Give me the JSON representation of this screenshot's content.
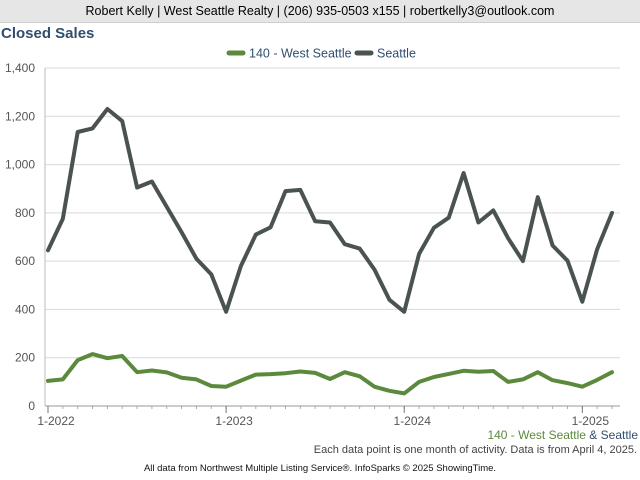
{
  "header": {
    "contact": "Robert Kelly | West Seattle Realty | (206) 935-0503 x155 | robertkelly3@outlook.com"
  },
  "chart_data": {
    "type": "line",
    "title": "Closed Sales",
    "x": [
      "2022-01",
      "2022-02",
      "2022-03",
      "2022-04",
      "2022-05",
      "2022-06",
      "2022-07",
      "2022-08",
      "2022-09",
      "2022-10",
      "2022-11",
      "2022-12",
      "2023-01",
      "2023-02",
      "2023-03",
      "2023-04",
      "2023-05",
      "2023-06",
      "2023-07",
      "2023-08",
      "2023-09",
      "2023-10",
      "2023-11",
      "2023-12",
      "2024-01",
      "2024-02",
      "2024-03",
      "2024-04",
      "2024-05",
      "2024-06",
      "2024-07",
      "2024-08",
      "2024-09",
      "2024-10",
      "2024-11",
      "2024-12",
      "2025-01",
      "2025-02",
      "2025-03"
    ],
    "x_ticks": [
      "1-2022",
      "1-2023",
      "1-2024",
      "1-2025"
    ],
    "y_ticks": [
      "0",
      "200",
      "400",
      "600",
      "800",
      "1,000",
      "1,200",
      "1,400"
    ],
    "ylim": [
      0,
      1400
    ],
    "grid": true,
    "legend_position": "top-center",
    "series": [
      {
        "name": "140 - West Seattle",
        "color": "#5b8a3c",
        "values": [
          104,
          110,
          190,
          215,
          198,
          207,
          140,
          147,
          139,
          117,
          110,
          83,
          80,
          105,
          130,
          132,
          136,
          143,
          137,
          112,
          140,
          123,
          80,
          63,
          52,
          100,
          120,
          133,
          146,
          142,
          145,
          100,
          110,
          140,
          107,
          95,
          80,
          108,
          140
        ]
      },
      {
        "name": "Seattle",
        "color": "#4a5352",
        "values": [
          645,
          775,
          1135,
          1150,
          1230,
          1180,
          905,
          930,
          825,
          720,
          610,
          545,
          390,
          580,
          710,
          740,
          890,
          895,
          765,
          760,
          670,
          652,
          565,
          440,
          390,
          630,
          738,
          780,
          965,
          760,
          810,
          695,
          600,
          865,
          665,
          602,
          432,
          650,
          800
        ]
      }
    ],
    "bottom_legend": {
      "series1": "140 - West Seattle",
      "amp": "&",
      "series2": "Seattle"
    }
  },
  "footer": {
    "note": "Each data point is one month of activity. Data is from April 4, 2025.",
    "source": "All data from Northwest Multiple Listing Service®. InfoSparks © 2025 ShowingTime."
  }
}
